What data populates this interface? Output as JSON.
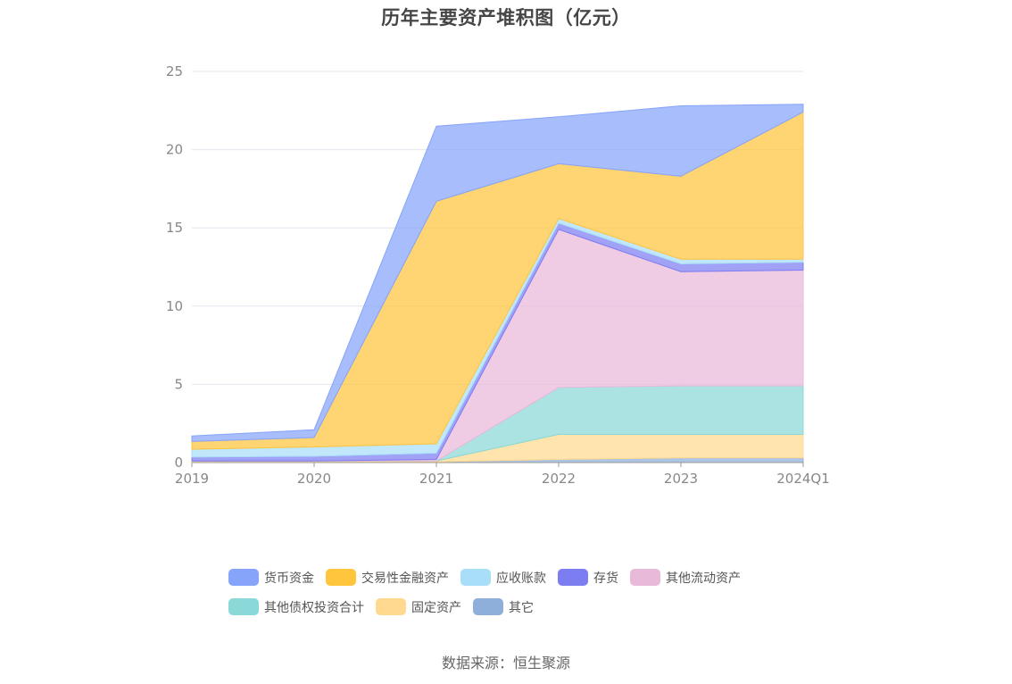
{
  "chart_data": {
    "type": "area",
    "stacked": true,
    "title": "历年主要资产堆积图（亿元）",
    "categories": [
      "2019",
      "2020",
      "2021",
      "2022",
      "2023",
      "2024Q1"
    ],
    "ylim": [
      0,
      25
    ],
    "yticks": [
      0,
      5,
      10,
      15,
      20,
      25
    ],
    "grid": true,
    "legend_position": "bottom",
    "series": [
      {
        "name": "其它",
        "color": "#8eafd9",
        "values": [
          0.05,
          0.05,
          0.05,
          0.2,
          0.3,
          0.3
        ]
      },
      {
        "name": "固定资产",
        "color": "#ffd98f",
        "values": [
          0.05,
          0.05,
          0.05,
          1.6,
          1.5,
          1.5
        ]
      },
      {
        "name": "其他债权投资合计",
        "color": "#8ad8d8",
        "values": [
          0.0,
          0.0,
          0.0,
          3.0,
          3.1,
          3.1
        ]
      },
      {
        "name": "其他流动资产",
        "color": "#e9b9da",
        "values": [
          0.0,
          0.0,
          0.1,
          10.1,
          7.3,
          7.4
        ]
      },
      {
        "name": "存货",
        "color": "#7d7df2",
        "values": [
          0.25,
          0.3,
          0.4,
          0.4,
          0.5,
          0.5
        ]
      },
      {
        "name": "应收账款",
        "color": "#a9def9",
        "values": [
          0.5,
          0.6,
          0.6,
          0.3,
          0.3,
          0.2
        ]
      },
      {
        "name": "交易性金融资产",
        "color": "#ffc53d",
        "values": [
          0.5,
          0.6,
          15.5,
          3.5,
          5.3,
          9.4
        ]
      },
      {
        "name": "货币资金",
        "color": "#86a4f9",
        "values": [
          0.35,
          0.5,
          4.8,
          3.0,
          4.5,
          0.5
        ]
      }
    ],
    "legend_order": [
      "货币资金",
      "交易性金融资产",
      "应收账款",
      "存货",
      "其他流动资产",
      "其他债权投资合计",
      "固定资产",
      "其它"
    ]
  },
  "legend": {
    "rows": [
      [
        {
          "label": "货币资金",
          "color": "#86a4f9"
        },
        {
          "label": "交易性金融资产",
          "color": "#ffc53d"
        },
        {
          "label": "应收账款",
          "color": "#a9def9"
        },
        {
          "label": "存货",
          "color": "#7d7df2"
        },
        {
          "label": "其他流动资产",
          "color": "#e9b9da"
        }
      ],
      [
        {
          "label": "其他债权投资合计",
          "color": "#8ad8d8"
        },
        {
          "label": "固定资产",
          "color": "#ffd98f"
        },
        {
          "label": "其它",
          "color": "#8eafd9"
        }
      ]
    ]
  },
  "footer": {
    "source": "数据来源：恒生聚源"
  }
}
